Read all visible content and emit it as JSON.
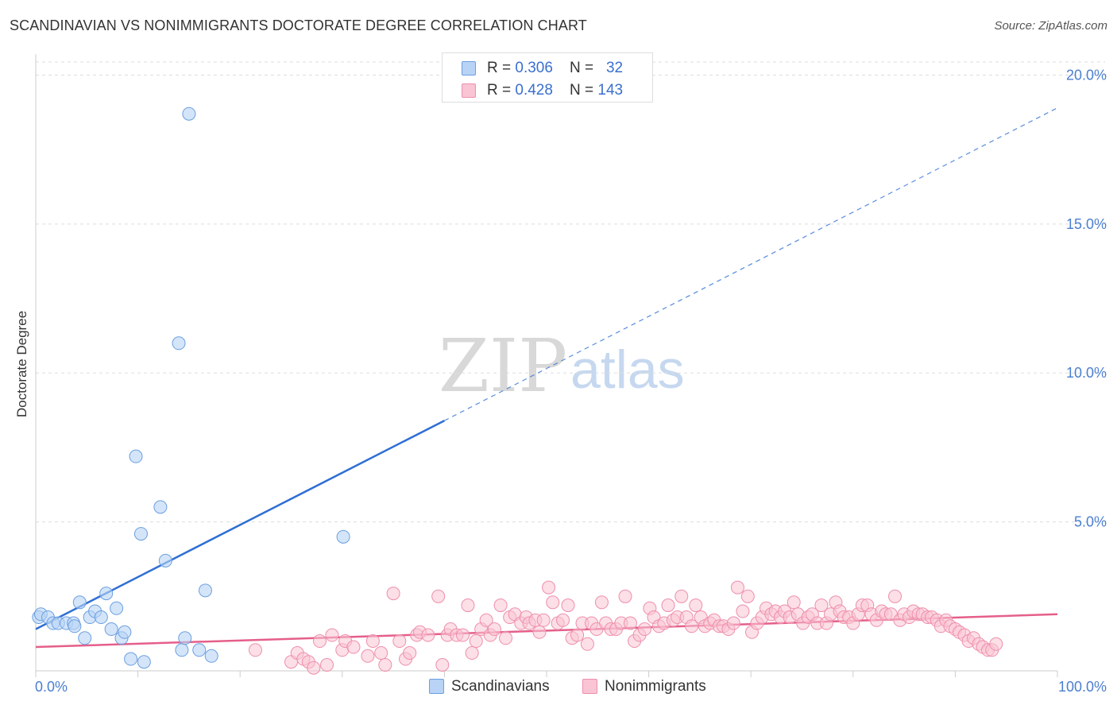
{
  "title": "SCANDINAVIAN VS NONIMMIGRANTS DOCTORATE DEGREE CORRELATION CHART",
  "source": "Source: ZipAtlas.com",
  "watermark": {
    "zip": "ZIP",
    "atlas": "atlas"
  },
  "colors": {
    "scandinavian_fill": "#b8d3f5",
    "scandinavian_stroke": "#6b9fe0",
    "scandinavian_line": "#2f6fd3",
    "nonimmigrant_fill": "#f9c4d3",
    "nonimmigrant_stroke": "#ee8fab",
    "nonimmigrant_line": "#e55f8a",
    "tick_text": "#4a7fd0",
    "grid": "#dddddd"
  },
  "legend": {
    "rows": [
      {
        "r_label": "R = ",
        "r_value": "0.306",
        "n_label": "N = ",
        "n_value": "32"
      },
      {
        "r_label": "R = ",
        "r_value": "0.428",
        "n_label": "N = ",
        "n_value": "143"
      }
    ],
    "series": [
      "Scandinavians",
      "Nonimmigrants"
    ]
  },
  "chart_data": {
    "type": "scatter",
    "title": "SCANDINAVIAN VS NONIMMIGRANTS DOCTORATE DEGREE CORRELATION CHART",
    "xlabel": "",
    "ylabel": "Doctorate Degree",
    "xlim": [
      0,
      100
    ],
    "ylim": [
      0,
      20.6
    ],
    "x_tick_labels": [
      "0.0%",
      "100.0%"
    ],
    "y_ticks": [
      5,
      10,
      15,
      20
    ],
    "y_tick_labels": [
      "5.0%",
      "10.0%",
      "15.0%",
      "20.0%"
    ],
    "grid": true,
    "series": [
      {
        "name": "Scandinavians",
        "r": 0.306,
        "n": 32,
        "trend": {
          "x0": 0,
          "y0": 1.4,
          "x1": 40,
          "y1": 8.4,
          "dash_x1": 100,
          "dash_y1": 18.9
        },
        "points": [
          [
            0.3,
            1.8
          ],
          [
            0.5,
            1.9
          ],
          [
            1.2,
            1.8
          ],
          [
            1.7,
            1.6
          ],
          [
            2.2,
            1.6
          ],
          [
            3.0,
            1.6
          ],
          [
            3.7,
            1.6
          ],
          [
            3.8,
            1.5
          ],
          [
            4.3,
            2.3
          ],
          [
            4.8,
            1.1
          ],
          [
            5.3,
            1.8
          ],
          [
            5.8,
            2.0
          ],
          [
            6.4,
            1.8
          ],
          [
            6.9,
            2.6
          ],
          [
            7.4,
            1.4
          ],
          [
            7.9,
            2.1
          ],
          [
            8.4,
            1.1
          ],
          [
            8.7,
            1.3
          ],
          [
            9.3,
            0.4
          ],
          [
            9.8,
            7.2
          ],
          [
            10.3,
            4.6
          ],
          [
            10.6,
            0.3
          ],
          [
            12.2,
            5.5
          ],
          [
            12.7,
            3.7
          ],
          [
            14.0,
            11.0
          ],
          [
            14.3,
            0.7
          ],
          [
            14.6,
            1.1
          ],
          [
            15.0,
            18.7
          ],
          [
            16.0,
            0.7
          ],
          [
            16.6,
            2.7
          ],
          [
            17.2,
            0.5
          ],
          [
            30.1,
            4.5
          ]
        ]
      },
      {
        "name": "Nonimmigrants",
        "r": 0.428,
        "n": 143,
        "trend": {
          "x0": 0,
          "y0": 0.8,
          "x1": 100,
          "y1": 1.9
        },
        "points": [
          [
            21.5,
            0.7
          ],
          [
            25.0,
            0.3
          ],
          [
            25.6,
            0.6
          ],
          [
            26.2,
            0.4
          ],
          [
            26.7,
            0.3
          ],
          [
            27.2,
            0.1
          ],
          [
            27.8,
            1.0
          ],
          [
            28.5,
            0.2
          ],
          [
            29.0,
            1.2
          ],
          [
            30.0,
            0.7
          ],
          [
            30.3,
            1.0
          ],
          [
            31.1,
            0.8
          ],
          [
            32.5,
            0.5
          ],
          [
            33.0,
            1.0
          ],
          [
            33.8,
            0.6
          ],
          [
            34.2,
            0.2
          ],
          [
            35.0,
            2.6
          ],
          [
            35.6,
            1.0
          ],
          [
            36.2,
            0.4
          ],
          [
            36.6,
            0.6
          ],
          [
            37.3,
            1.2
          ],
          [
            37.6,
            1.3
          ],
          [
            38.4,
            1.2
          ],
          [
            39.4,
            2.5
          ],
          [
            39.8,
            0.2
          ],
          [
            40.3,
            1.2
          ],
          [
            40.6,
            1.4
          ],
          [
            41.2,
            1.2
          ],
          [
            41.8,
            1.2
          ],
          [
            42.3,
            2.2
          ],
          [
            42.7,
            0.6
          ],
          [
            43.1,
            1.0
          ],
          [
            43.6,
            1.4
          ],
          [
            44.1,
            1.7
          ],
          [
            44.5,
            1.2
          ],
          [
            44.9,
            1.4
          ],
          [
            45.5,
            2.2
          ],
          [
            46.0,
            1.1
          ],
          [
            46.4,
            1.8
          ],
          [
            46.9,
            1.9
          ],
          [
            47.5,
            1.6
          ],
          [
            48.0,
            1.8
          ],
          [
            48.3,
            1.6
          ],
          [
            48.9,
            1.7
          ],
          [
            49.3,
            1.3
          ],
          [
            49.7,
            1.7
          ],
          [
            50.2,
            2.8
          ],
          [
            50.6,
            2.3
          ],
          [
            51.1,
            1.6
          ],
          [
            51.6,
            1.7
          ],
          [
            52.1,
            2.2
          ],
          [
            52.5,
            1.1
          ],
          [
            53.0,
            1.2
          ],
          [
            53.5,
            1.6
          ],
          [
            54.0,
            0.9
          ],
          [
            54.4,
            1.6
          ],
          [
            54.9,
            1.4
          ],
          [
            55.4,
            2.3
          ],
          [
            55.8,
            1.6
          ],
          [
            56.3,
            1.4
          ],
          [
            56.8,
            1.4
          ],
          [
            57.3,
            1.6
          ],
          [
            57.7,
            2.5
          ],
          [
            58.2,
            1.6
          ],
          [
            58.6,
            1.0
          ],
          [
            59.1,
            1.2
          ],
          [
            59.6,
            1.4
          ],
          [
            60.1,
            2.1
          ],
          [
            60.5,
            1.8
          ],
          [
            61.0,
            1.5
          ],
          [
            61.5,
            1.6
          ],
          [
            61.9,
            2.2
          ],
          [
            62.4,
            1.7
          ],
          [
            62.8,
            1.8
          ],
          [
            63.2,
            2.5
          ],
          [
            63.7,
            1.8
          ],
          [
            64.2,
            1.5
          ],
          [
            64.6,
            2.2
          ],
          [
            65.1,
            1.8
          ],
          [
            65.5,
            1.5
          ],
          [
            66.0,
            1.6
          ],
          [
            66.4,
            1.7
          ],
          [
            66.9,
            1.5
          ],
          [
            67.3,
            1.5
          ],
          [
            67.8,
            1.4
          ],
          [
            68.3,
            1.6
          ],
          [
            68.7,
            2.8
          ],
          [
            69.2,
            2.0
          ],
          [
            69.7,
            2.5
          ],
          [
            70.1,
            1.3
          ],
          [
            70.6,
            1.6
          ],
          [
            71.1,
            1.8
          ],
          [
            71.5,
            2.1
          ],
          [
            72.0,
            1.9
          ],
          [
            72.4,
            2.0
          ],
          [
            72.9,
            1.8
          ],
          [
            73.3,
            2.0
          ],
          [
            73.8,
            1.8
          ],
          [
            74.2,
            2.3
          ],
          [
            74.6,
            1.9
          ],
          [
            75.1,
            1.6
          ],
          [
            75.6,
            1.8
          ],
          [
            76.0,
            1.9
          ],
          [
            76.5,
            1.6
          ],
          [
            76.9,
            2.2
          ],
          [
            77.4,
            1.6
          ],
          [
            77.8,
            1.9
          ],
          [
            78.3,
            2.3
          ],
          [
            78.7,
            2.0
          ],
          [
            79.1,
            1.8
          ],
          [
            79.6,
            1.8
          ],
          [
            80.0,
            1.6
          ],
          [
            80.5,
            1.9
          ],
          [
            80.9,
            2.2
          ],
          [
            81.4,
            2.2
          ],
          [
            81.8,
            1.9
          ],
          [
            82.3,
            1.7
          ],
          [
            82.8,
            2.0
          ],
          [
            83.2,
            1.9
          ],
          [
            83.7,
            1.9
          ],
          [
            84.1,
            2.5
          ],
          [
            84.6,
            1.7
          ],
          [
            85.0,
            1.9
          ],
          [
            85.5,
            1.8
          ],
          [
            85.9,
            2.0
          ],
          [
            86.4,
            1.9
          ],
          [
            86.8,
            1.9
          ],
          [
            87.3,
            1.8
          ],
          [
            87.7,
            1.8
          ],
          [
            88.2,
            1.7
          ],
          [
            88.6,
            1.5
          ],
          [
            89.1,
            1.7
          ],
          [
            89.5,
            1.5
          ],
          [
            90.0,
            1.4
          ],
          [
            90.4,
            1.3
          ],
          [
            90.9,
            1.2
          ],
          [
            91.3,
            1.0
          ],
          [
            91.8,
            1.1
          ],
          [
            92.3,
            0.9
          ],
          [
            92.7,
            0.8
          ],
          [
            93.2,
            0.7
          ],
          [
            93.6,
            0.7
          ],
          [
            94.0,
            0.9
          ]
        ]
      }
    ]
  }
}
